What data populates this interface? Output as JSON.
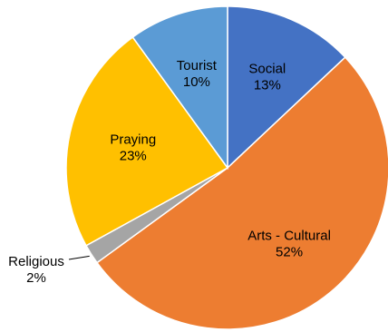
{
  "chart_data": {
    "type": "pie",
    "slices": [
      {
        "name": "Social",
        "value": 13,
        "value_label": "13%",
        "color": "#4472C4"
      },
      {
        "name": "Arts - Cultural",
        "value": 52,
        "value_label": "52%",
        "color": "#ED7D31"
      },
      {
        "name": "Religious",
        "value": 2,
        "value_label": "2%",
        "color": "#A5A5A5"
      },
      {
        "name": "Praying",
        "value": 23,
        "value_label": "23%",
        "color": "#FFC000"
      },
      {
        "name": "Tourist",
        "value": 10,
        "value_label": "10%",
        "color": "#5B9BD5"
      }
    ],
    "start_angle": "12 o'clock",
    "direction": "clockwise",
    "legend": "none"
  }
}
